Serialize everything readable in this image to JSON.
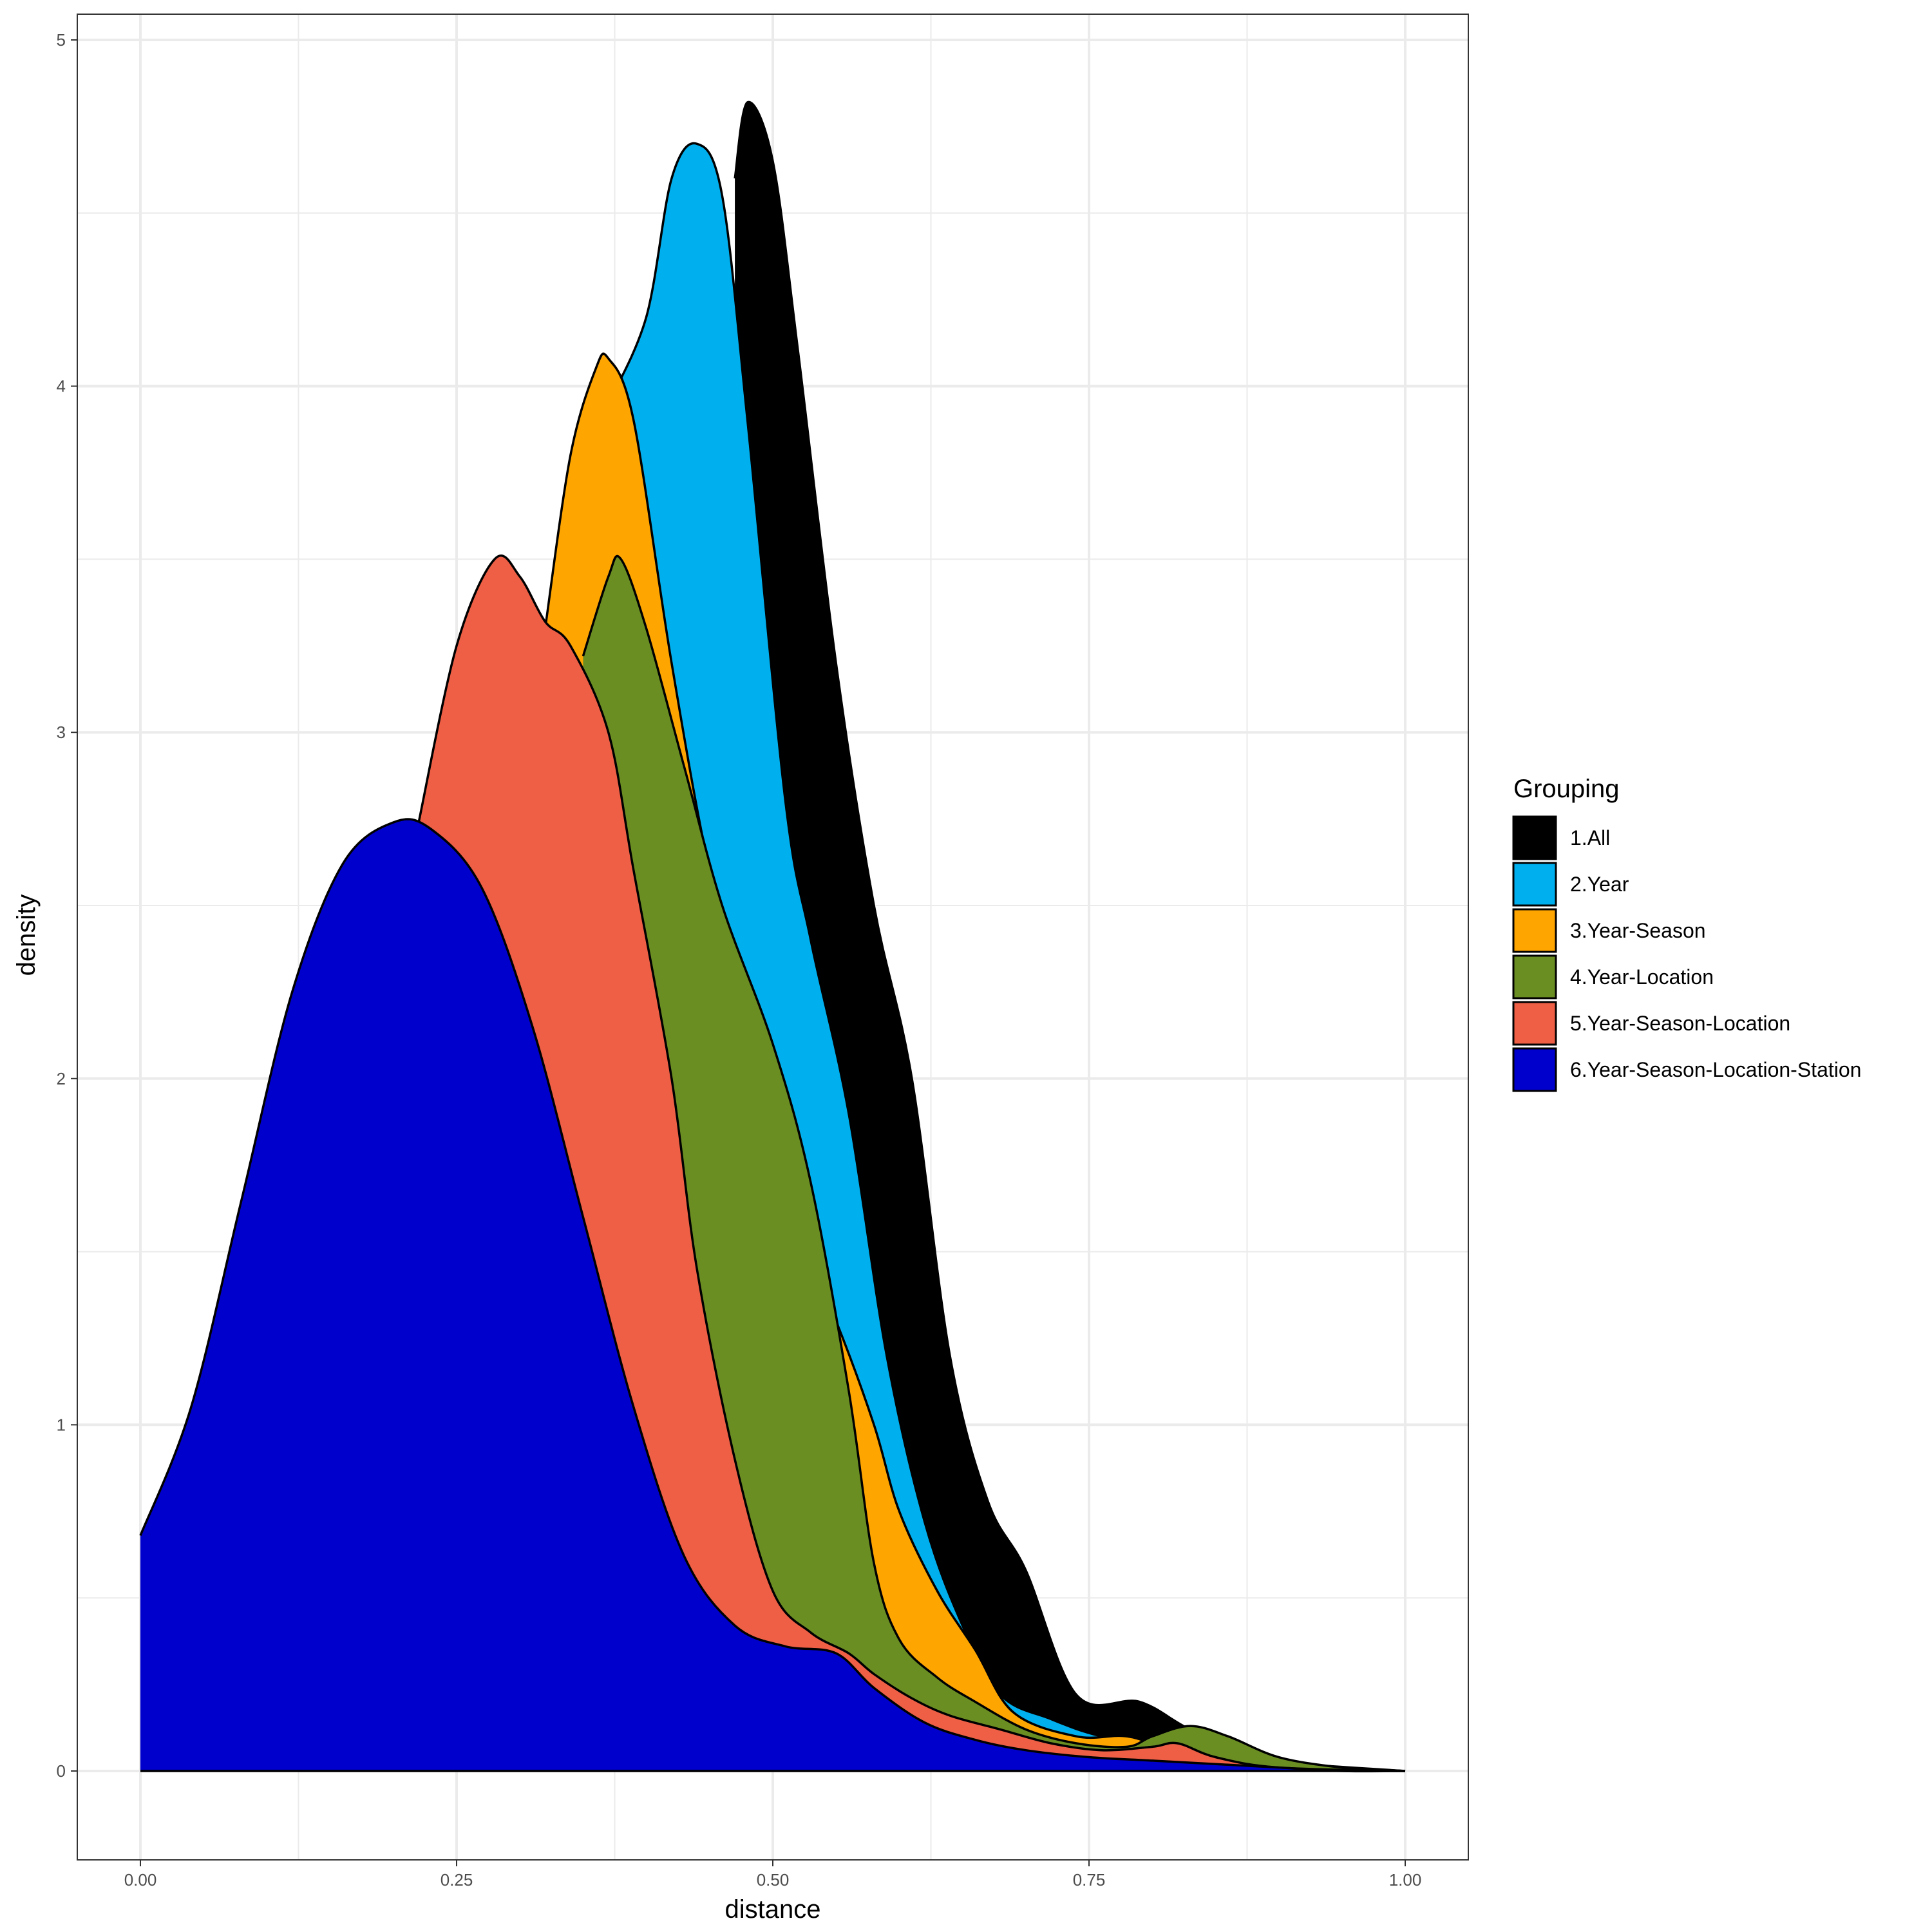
{
  "chart_data": {
    "type": "area",
    "title": "",
    "xlabel": "distance",
    "ylabel": "density",
    "xlim": [
      0,
      1
    ],
    "ylim": [
      0,
      5
    ],
    "x_ticks": [
      "0.00",
      "0.25",
      "0.50",
      "0.75",
      "1.00"
    ],
    "y_ticks": [
      "0",
      "1",
      "2",
      "3",
      "4",
      "5"
    ],
    "grid": true,
    "legend": {
      "title": "Grouping",
      "placement": "right"
    },
    "series": [
      {
        "name": "1.All",
        "color": "#000000",
        "points": [
          [
            0.47,
            4.6
          ],
          [
            0.48,
            4.82
          ],
          [
            0.5,
            4.65
          ],
          [
            0.52,
            4.1
          ],
          [
            0.55,
            3.2
          ],
          [
            0.58,
            2.5
          ],
          [
            0.61,
            2.0
          ],
          [
            0.64,
            1.2
          ],
          [
            0.67,
            0.78
          ],
          [
            0.7,
            0.58
          ],
          [
            0.74,
            0.22
          ],
          [
            0.79,
            0.2
          ],
          [
            0.83,
            0.12
          ],
          [
            0.88,
            0.05
          ],
          [
            0.93,
            0.01
          ],
          [
            1.0,
            0.0
          ]
        ]
      },
      {
        "name": "2.Year",
        "color": "#00B0EE",
        "points": [
          [
            0.37,
            3.95
          ],
          [
            0.4,
            4.2
          ],
          [
            0.42,
            4.6
          ],
          [
            0.44,
            4.7
          ],
          [
            0.46,
            4.55
          ],
          [
            0.48,
            3.9
          ],
          [
            0.51,
            2.8
          ],
          [
            0.53,
            2.4
          ],
          [
            0.56,
            1.9
          ],
          [
            0.59,
            1.2
          ],
          [
            0.62,
            0.72
          ],
          [
            0.65,
            0.42
          ],
          [
            0.68,
            0.22
          ],
          [
            0.72,
            0.15
          ],
          [
            0.76,
            0.1
          ],
          [
            0.82,
            0.06
          ],
          [
            0.88,
            0.03
          ],
          [
            1.0,
            0.0
          ]
        ]
      },
      {
        "name": "3.Year-Season",
        "color": "#FFA500",
        "points": [
          [
            0.32,
            3.3
          ],
          [
            0.34,
            3.8
          ],
          [
            0.36,
            4.05
          ],
          [
            0.37,
            4.08
          ],
          [
            0.39,
            3.9
          ],
          [
            0.42,
            3.2
          ],
          [
            0.45,
            2.6
          ],
          [
            0.48,
            2.2
          ],
          [
            0.52,
            1.55
          ],
          [
            0.55,
            1.3
          ],
          [
            0.58,
            1.0
          ],
          [
            0.6,
            0.75
          ],
          [
            0.63,
            0.52
          ],
          [
            0.66,
            0.35
          ],
          [
            0.69,
            0.17
          ],
          [
            0.74,
            0.1
          ],
          [
            0.78,
            0.1
          ],
          [
            0.82,
            0.06
          ],
          [
            0.9,
            0.02
          ],
          [
            1.0,
            0.0
          ]
        ]
      },
      {
        "name": "4.Year-Location",
        "color": "#6B8E23",
        "points": [
          [
            0.35,
            3.22
          ],
          [
            0.37,
            3.45
          ],
          [
            0.38,
            3.5
          ],
          [
            0.4,
            3.3
          ],
          [
            0.43,
            2.9
          ],
          [
            0.46,
            2.5
          ],
          [
            0.5,
            2.1
          ],
          [
            0.53,
            1.7
          ],
          [
            0.56,
            1.1
          ],
          [
            0.58,
            0.6
          ],
          [
            0.6,
            0.38
          ],
          [
            0.63,
            0.27
          ],
          [
            0.66,
            0.2
          ],
          [
            0.7,
            0.12
          ],
          [
            0.74,
            0.08
          ],
          [
            0.78,
            0.07
          ],
          [
            0.8,
            0.1
          ],
          [
            0.83,
            0.13
          ],
          [
            0.86,
            0.1
          ],
          [
            0.9,
            0.04
          ],
          [
            0.95,
            0.01
          ],
          [
            1.0,
            0.0
          ]
        ]
      },
      {
        "name": "5.Year-Season-Location",
        "color": "#EE5F46",
        "points": [
          [
            0.22,
            2.74
          ],
          [
            0.25,
            3.25
          ],
          [
            0.28,
            3.5
          ],
          [
            0.3,
            3.45
          ],
          [
            0.32,
            3.32
          ],
          [
            0.34,
            3.25
          ],
          [
            0.37,
            3.0
          ],
          [
            0.39,
            2.6
          ],
          [
            0.42,
            2.0
          ],
          [
            0.44,
            1.45
          ],
          [
            0.47,
            0.9
          ],
          [
            0.5,
            0.52
          ],
          [
            0.53,
            0.4
          ],
          [
            0.56,
            0.34
          ],
          [
            0.58,
            0.28
          ],
          [
            0.61,
            0.21
          ],
          [
            0.64,
            0.16
          ],
          [
            0.68,
            0.12
          ],
          [
            0.72,
            0.08
          ],
          [
            0.76,
            0.06
          ],
          [
            0.8,
            0.07
          ],
          [
            0.82,
            0.08
          ],
          [
            0.85,
            0.04
          ],
          [
            0.9,
            0.01
          ],
          [
            1.0,
            0.0
          ]
        ]
      },
      {
        "name": "6.Year-Season-Location-Station",
        "color": "#0000CD",
        "points": [
          [
            0.0,
            0.68
          ],
          [
            0.04,
            1.05
          ],
          [
            0.08,
            1.65
          ],
          [
            0.12,
            2.25
          ],
          [
            0.16,
            2.62
          ],
          [
            0.2,
            2.74
          ],
          [
            0.23,
            2.72
          ],
          [
            0.27,
            2.55
          ],
          [
            0.31,
            2.15
          ],
          [
            0.35,
            1.6
          ],
          [
            0.39,
            1.05
          ],
          [
            0.43,
            0.62
          ],
          [
            0.47,
            0.42
          ],
          [
            0.51,
            0.36
          ],
          [
            0.55,
            0.34
          ],
          [
            0.58,
            0.24
          ],
          [
            0.62,
            0.14
          ],
          [
            0.66,
            0.09
          ],
          [
            0.7,
            0.06
          ],
          [
            0.75,
            0.04
          ],
          [
            0.8,
            0.03
          ],
          [
            0.85,
            0.02
          ],
          [
            0.9,
            0.01
          ],
          [
            0.95,
            0.0
          ],
          [
            1.0,
            0.0
          ]
        ]
      }
    ]
  }
}
